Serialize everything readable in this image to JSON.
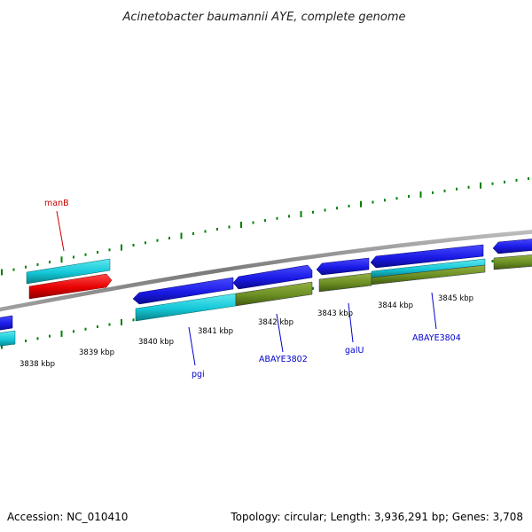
{
  "title": "Acinetobacter baumannii AYE, complete genome",
  "footer": {
    "accession": "Accession: NC_010410",
    "topology": "Topology: circular; Length: 3,936,291 bp; Genes: 3,708"
  },
  "colors": {
    "backbone": "#8a8a8a",
    "tick": "#008000",
    "cds_forward": "#1a1ae6",
    "cds_reverse": "#00c8d8",
    "rrna": "#e60000",
    "trna_like": "#6b8e23",
    "label_blue": "#0000cc",
    "label_red": "#cc0000"
  },
  "scale": {
    "unit": "kbp",
    "tick_labels": [
      "3838 kbp",
      "3839 kbp",
      "3840 kbp",
      "3841 kbp",
      "3842 kbp",
      "3843 kbp",
      "3844 kbp",
      "3845 kbp"
    ]
  },
  "gene_labels": [
    {
      "name": "manB",
      "color": "label_red"
    },
    {
      "name": "pgi",
      "color": "label_blue"
    },
    {
      "name": "ABAYE3802",
      "color": "label_blue"
    },
    {
      "name": "galU",
      "color": "label_blue"
    },
    {
      "name": "ABAYE3804",
      "color": "label_blue"
    }
  ]
}
